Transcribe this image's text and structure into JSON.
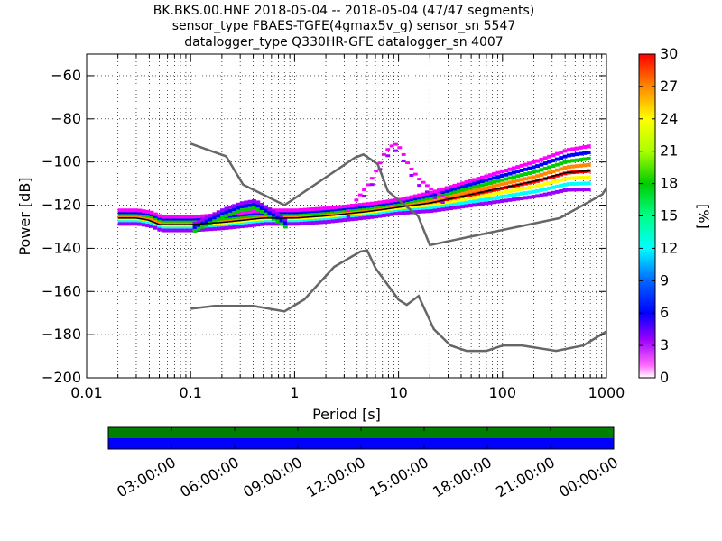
{
  "title_lines": [
    "BK.BKS.00.HNE   2018-05-04 -- 2018-05-04  (47/47 segments)",
    "sensor_type FBAES-TGFE(4gmax5v_g) sensor_sn 5547",
    "datalogger_type Q330HR-GFE datalogger_sn 4007"
  ],
  "chart_data": {
    "type": "heatmap",
    "title": "BK.BKS.00.HNE   2018-05-04 -- 2018-05-04  (47/47 segments)",
    "xlabel": "Period [s]",
    "ylabel": "Power [dB]",
    "xscale": "log",
    "xlim": [
      0.01,
      1000
    ],
    "ylim": [
      -200,
      -50
    ],
    "x_ticks": [
      0.01,
      0.1,
      1,
      10,
      100,
      1000
    ],
    "x_tick_labels": [
      "0.01",
      "0.1",
      "1",
      "10",
      "100",
      "1000"
    ],
    "y_ticks": [
      -200,
      -180,
      -160,
      -140,
      -120,
      -100,
      -80,
      -60
    ],
    "y_tick_labels": [
      "−200",
      "−180",
      "−160",
      "−140",
      "−120",
      "−100",
      "−80",
      "−60"
    ],
    "grid": "dotted",
    "colorbar": {
      "label": "[%]",
      "range": [
        0,
        30
      ],
      "ticks": [
        0,
        3,
        6,
        9,
        12,
        15,
        18,
        21,
        24,
        27,
        30
      ],
      "tick_labels": [
        "0",
        "3",
        "6",
        "9",
        "12",
        "15",
        "18",
        "21",
        "24",
        "27",
        "30"
      ]
    },
    "noise_models": [
      {
        "x": [
          0.1,
          0.22,
          0.32,
          0.8,
          3.8,
          4.6,
          6.3,
          7.9,
          15.4,
          20,
          354.8,
          912,
          1000
        ],
        "y": [
          -91.5,
          -97.4,
          -110.5,
          -120,
          -98,
          -96.5,
          -101,
          -113.5,
          -125,
          -138.5,
          -126,
          -115,
          -112
        ]
      },
      {
        "x": [
          0.1,
          0.17,
          0.4,
          0.8,
          1.24,
          2.4,
          4.3,
          5,
          6,
          10,
          12,
          15.6,
          21.9,
          31.6,
          45,
          70,
          101,
          154,
          328,
          600,
          1000
        ],
        "y": [
          -168,
          -166.7,
          -166.7,
          -169.2,
          -163.7,
          -148.6,
          -141.5,
          -141,
          -149.1,
          -163.8,
          -166.2,
          -162.1,
          -177.5,
          -185,
          -187.5,
          -187.5,
          -185,
          -185,
          -187.5,
          -185,
          -178.5
        ]
      }
    ],
    "mode_line": {
      "x": [
        0.02,
        0.03,
        0.04,
        0.05,
        0.07,
        0.1,
        0.2,
        0.5,
        1,
        2,
        5,
        10,
        20,
        40,
        100,
        200,
        400,
        700
      ],
      "y": [
        -126,
        -126,
        -127,
        -129,
        -129,
        -129,
        -128,
        -126,
        -126,
        -125,
        -123,
        -121,
        -119,
        -116,
        -112,
        -109,
        -105,
        -104
      ]
    },
    "daytime_branch": {
      "x": [
        0.1,
        0.2,
        0.3,
        0.4,
        0.6,
        0.8
      ],
      "y": [
        -129,
        -122,
        -119,
        -118,
        -123,
        -127
      ]
    },
    "resonance_peak": {
      "x": [
        3,
        4,
        5,
        6,
        7,
        8,
        9,
        10,
        12,
        15,
        20,
        30
      ],
      "y": [
        -124,
        -116,
        -110,
        -103,
        -96,
        -93,
        -92,
        -94,
        -102,
        -108,
        -113,
        -118
      ]
    },
    "timeline": {
      "tick_labels": [
        "03:00:00",
        "06:00:00",
        "09:00:00",
        "12:00:00",
        "15:00:00",
        "18:00:00",
        "21:00:00",
        "00:00:00"
      ],
      "bands": [
        {
          "color": "#008000",
          "fraction": [
            0,
            1
          ]
        },
        {
          "color": "#0000ff",
          "fraction": [
            0,
            1
          ]
        }
      ]
    }
  }
}
